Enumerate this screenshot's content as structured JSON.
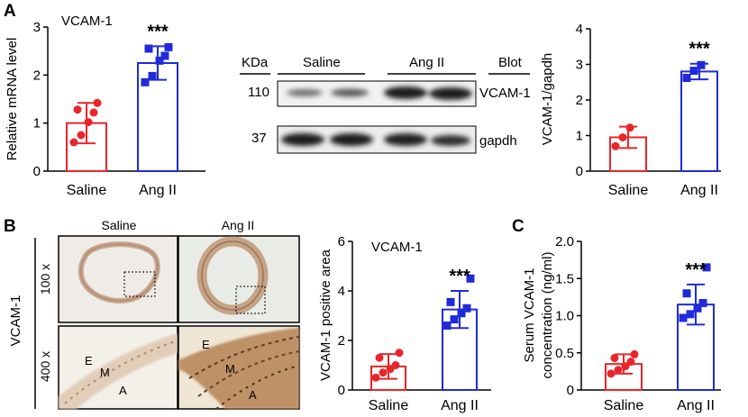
{
  "colors": {
    "saline": "#e8262a",
    "angii": "#1f2bd9",
    "axis": "#000000"
  },
  "panel_labels": [
    "A",
    "B",
    "C"
  ],
  "blot": {
    "kda_header": "KDa",
    "saline_label": "Saline",
    "angii_label": "Ang II",
    "blot_header": "Blot",
    "rows": [
      {
        "kda": "110",
        "name": "VCAM-1"
      },
      {
        "kda": "37",
        "name": "gapdh"
      }
    ]
  },
  "micrographs": {
    "col_headers": [
      "Saline",
      "Ang II"
    ],
    "side_label": "VCAM-1",
    "row_labels": [
      "100 x",
      "400 x"
    ],
    "layer_labels": [
      "E",
      "M",
      "A"
    ]
  },
  "chart_data": [
    {
      "type": "bar",
      "title": "VCAM-1",
      "ylabel": "Relative mRNA level",
      "xlabel": "",
      "categories": [
        "Saline",
        "Ang II"
      ],
      "values": [
        1.0,
        2.25
      ],
      "error": [
        0.42,
        0.35
      ],
      "points": [
        [
          0.6,
          0.75,
          1.02,
          1.22,
          1.28,
          1.42
        ],
        [
          1.85,
          1.98,
          2.3,
          2.4,
          2.55,
          2.58
        ]
      ],
      "ylim": [
        0,
        3
      ],
      "yticks": [
        "0",
        "1",
        "2",
        "3"
      ],
      "significance": "***",
      "grid": false
    },
    {
      "type": "bar",
      "title": "",
      "ylabel": "VCAM-1/gapdh",
      "xlabel": "",
      "categories": [
        "Saline",
        "Ang II"
      ],
      "values": [
        0.95,
        2.8
      ],
      "error": [
        0.3,
        0.22
      ],
      "points": [
        [
          0.7,
          0.95,
          1.22
        ],
        [
          2.62,
          2.82,
          2.98
        ]
      ],
      "ylim": [
        0,
        4
      ],
      "yticks": [
        "0",
        "1",
        "2",
        "3",
        "4"
      ],
      "significance": "***",
      "grid": false
    },
    {
      "type": "bar",
      "title": "VCAM-1",
      "ylabel": "VCAM-1 positive area",
      "xlabel": "",
      "categories": [
        "Saline",
        "Ang II"
      ],
      "values": [
        0.95,
        3.25
      ],
      "error": [
        0.5,
        0.75
      ],
      "points": [
        [
          0.5,
          0.7,
          0.85,
          1.0,
          1.3,
          1.5
        ],
        [
          2.6,
          2.85,
          3.1,
          3.3,
          3.55,
          4.5
        ]
      ],
      "ylim": [
        0,
        6
      ],
      "yticks": [
        "0",
        "2",
        "4",
        "6"
      ],
      "significance": "***",
      "grid": false
    },
    {
      "type": "bar",
      "title": "",
      "ylabel": "Serum VCAM-1 concentration (ng/ml)",
      "ylabel_lines": [
        "Serum VCAM-1",
        "concentration (ng/ml)"
      ],
      "xlabel": "",
      "categories": [
        "Saline",
        "Ang II"
      ],
      "values": [
        0.35,
        1.15
      ],
      "error": [
        0.13,
        0.27
      ],
      "points": [
        [
          0.22,
          0.27,
          0.32,
          0.38,
          0.43,
          0.48
        ],
        [
          0.97,
          1.02,
          1.1,
          1.17,
          1.3,
          1.65
        ]
      ],
      "ylim": [
        0,
        2.0
      ],
      "yticks": [
        "0",
        "0.5",
        "1.0",
        "1.5",
        "2.0"
      ],
      "significance": "***",
      "grid": false
    }
  ]
}
